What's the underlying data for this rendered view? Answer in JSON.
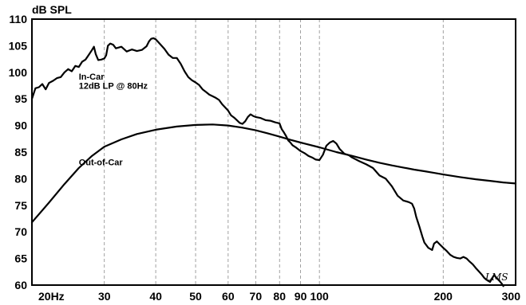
{
  "chart_data": {
    "type": "line",
    "ylabel": "dB SPL",
    "xscale": "log",
    "xlim": [
      20,
      300
    ],
    "ylim": [
      60,
      110
    ],
    "grid": true,
    "x_ticks": [
      {
        "value": 20,
        "label": "20Hz"
      },
      {
        "value": 30,
        "label": "30"
      },
      {
        "value": 40,
        "label": "40"
      },
      {
        "value": 50,
        "label": "50"
      },
      {
        "value": 60,
        "label": "60"
      },
      {
        "value": 70,
        "label": "70"
      },
      {
        "value": 80,
        "label": "80"
      },
      {
        "value": 90,
        "label": "90"
      },
      {
        "value": 100,
        "label": "100"
      },
      {
        "value": 200,
        "label": "200"
      },
      {
        "value": 300,
        "label": "300"
      }
    ],
    "y_ticks": [
      {
        "value": 60,
        "label": "60"
      },
      {
        "value": 65,
        "label": "65"
      },
      {
        "value": 70,
        "label": "70"
      },
      {
        "value": 75,
        "label": "75"
      },
      {
        "value": 80,
        "label": "80"
      },
      {
        "value": 85,
        "label": "85"
      },
      {
        "value": 90,
        "label": "90"
      },
      {
        "value": 95,
        "label": "95"
      },
      {
        "value": 100,
        "label": "100"
      },
      {
        "value": 105,
        "label": "105"
      },
      {
        "value": 110,
        "label": "110"
      }
    ],
    "annotations": [
      {
        "text": "In-Car",
        "x": 26,
        "y": 98.6
      },
      {
        "text": "12dB LP @ 80Hz",
        "x": 26,
        "y": 96.9
      },
      {
        "text": "Out-of-Car",
        "x": 26,
        "y": 82.5
      }
    ],
    "series": [
      {
        "points": [
          [
            20,
            95.0
          ],
          [
            20.4,
            97.0
          ],
          [
            20.8,
            97.2
          ],
          [
            21.2,
            97.8
          ],
          [
            21.6,
            96.8
          ],
          [
            22,
            98.0
          ],
          [
            22.5,
            98.4
          ],
          [
            23,
            98.9
          ],
          [
            23.5,
            99.1
          ],
          [
            24,
            100.0
          ],
          [
            24.5,
            100.6
          ],
          [
            25,
            100.2
          ],
          [
            25.5,
            101.2
          ],
          [
            26,
            101.0
          ],
          [
            26.5,
            102.0
          ],
          [
            27,
            102.4
          ],
          [
            27.5,
            103.3
          ],
          [
            28,
            104.2
          ],
          [
            28.3,
            104.8
          ],
          [
            28.6,
            103.4
          ],
          [
            29,
            102.3
          ],
          [
            29.5,
            102.4
          ],
          [
            30,
            102.6
          ],
          [
            30.3,
            103.2
          ],
          [
            30.6,
            105.0
          ],
          [
            31,
            105.4
          ],
          [
            31.5,
            105.2
          ],
          [
            32,
            104.5
          ],
          [
            33,
            104.8
          ],
          [
            34,
            103.9
          ],
          [
            35,
            104.3
          ],
          [
            36,
            104.0
          ],
          [
            37,
            104.2
          ],
          [
            38,
            104.9
          ],
          [
            38.5,
            105.8
          ],
          [
            39,
            106.3
          ],
          [
            39.5,
            106.4
          ],
          [
            40,
            106.2
          ],
          [
            41,
            105.3
          ],
          [
            42,
            104.4
          ],
          [
            43,
            103.3
          ],
          [
            44,
            102.7
          ],
          [
            45,
            102.7
          ],
          [
            46,
            101.6
          ],
          [
            47,
            100.2
          ],
          [
            48,
            99.1
          ],
          [
            49,
            98.5
          ],
          [
            50,
            98.1
          ],
          [
            51,
            97.6
          ],
          [
            52,
            96.8
          ],
          [
            53,
            96.3
          ],
          [
            54,
            95.8
          ],
          [
            55,
            95.5
          ],
          [
            56,
            95.2
          ],
          [
            57,
            94.8
          ],
          [
            58,
            94.0
          ],
          [
            59,
            93.4
          ],
          [
            60,
            92.8
          ],
          [
            61,
            91.9
          ],
          [
            62,
            91.5
          ],
          [
            63,
            91.0
          ],
          [
            64,
            90.5
          ],
          [
            65,
            90.3
          ],
          [
            66,
            90.8
          ],
          [
            67,
            91.6
          ],
          [
            68,
            92.1
          ],
          [
            69,
            91.8
          ],
          [
            70,
            91.6
          ],
          [
            72,
            91.4
          ],
          [
            74,
            91.0
          ],
          [
            76,
            90.9
          ],
          [
            78,
            90.6
          ],
          [
            80,
            90.4
          ],
          [
            81,
            89.3
          ],
          [
            82,
            88.7
          ],
          [
            83,
            88.0
          ],
          [
            84,
            87.2
          ],
          [
            85,
            86.8
          ],
          [
            86,
            86.3
          ],
          [
            88,
            85.8
          ],
          [
            90,
            85.2
          ],
          [
            92,
            84.8
          ],
          [
            94,
            84.3
          ],
          [
            96,
            84.0
          ],
          [
            98,
            83.6
          ],
          [
            100,
            83.5
          ],
          [
            101,
            84.0
          ],
          [
            102,
            84.5
          ],
          [
            104,
            86.2
          ],
          [
            106,
            86.8
          ],
          [
            108,
            87.1
          ],
          [
            110,
            86.6
          ],
          [
            112,
            85.6
          ],
          [
            115,
            84.7
          ],
          [
            118,
            84.4
          ],
          [
            120,
            84.0
          ],
          [
            125,
            83.3
          ],
          [
            130,
            82.7
          ],
          [
            135,
            82.0
          ],
          [
            140,
            80.6
          ],
          [
            145,
            80.0
          ],
          [
            150,
            78.6
          ],
          [
            155,
            76.8
          ],
          [
            160,
            75.9
          ],
          [
            165,
            75.6
          ],
          [
            168,
            75.3
          ],
          [
            170,
            74.4
          ],
          [
            172,
            72.8
          ],
          [
            175,
            71.0
          ],
          [
            178,
            69.1
          ],
          [
            180,
            68.0
          ],
          [
            184,
            67.0
          ],
          [
            188,
            66.6
          ],
          [
            190,
            67.8
          ],
          [
            193,
            68.2
          ],
          [
            196,
            67.7
          ],
          [
            200,
            67.0
          ],
          [
            204,
            66.4
          ],
          [
            208,
            65.7
          ],
          [
            212,
            65.3
          ],
          [
            216,
            65.1
          ],
          [
            220,
            65.0
          ],
          [
            224,
            65.3
          ],
          [
            228,
            65.0
          ],
          [
            232,
            64.4
          ],
          [
            236,
            63.9
          ],
          [
            240,
            63.2
          ],
          [
            244,
            62.6
          ],
          [
            248,
            62.0
          ],
          [
            252,
            61.3
          ],
          [
            256,
            60.9
          ],
          [
            260,
            60.6
          ],
          [
            263,
            61.3
          ],
          [
            266,
            61.9
          ],
          [
            270,
            61.3
          ],
          [
            274,
            60.8
          ],
          [
            278,
            60.2
          ],
          [
            280,
            59.8
          ]
        ]
      },
      {
        "points": [
          [
            20,
            71.8
          ],
          [
            22,
            75.5
          ],
          [
            24,
            79.0
          ],
          [
            26,
            82.0
          ],
          [
            28,
            84.3
          ],
          [
            30,
            86.0
          ],
          [
            33,
            87.4
          ],
          [
            36,
            88.4
          ],
          [
            40,
            89.2
          ],
          [
            45,
            89.8
          ],
          [
            50,
            90.1
          ],
          [
            55,
            90.2
          ],
          [
            60,
            90.0
          ],
          [
            65,
            89.6
          ],
          [
            70,
            89.1
          ],
          [
            75,
            88.5
          ],
          [
            80,
            87.9
          ],
          [
            85,
            87.3
          ],
          [
            90,
            86.8
          ],
          [
            100,
            85.9
          ],
          [
            110,
            85.0
          ],
          [
            120,
            84.3
          ],
          [
            130,
            83.6
          ],
          [
            140,
            83.0
          ],
          [
            150,
            82.5
          ],
          [
            160,
            82.1
          ],
          [
            170,
            81.7
          ],
          [
            180,
            81.4
          ],
          [
            190,
            81.1
          ],
          [
            200,
            80.8
          ],
          [
            220,
            80.3
          ],
          [
            240,
            79.9
          ],
          [
            260,
            79.6
          ],
          [
            280,
            79.3
          ],
          [
            300,
            79.1
          ]
        ]
      }
    ]
  }
}
